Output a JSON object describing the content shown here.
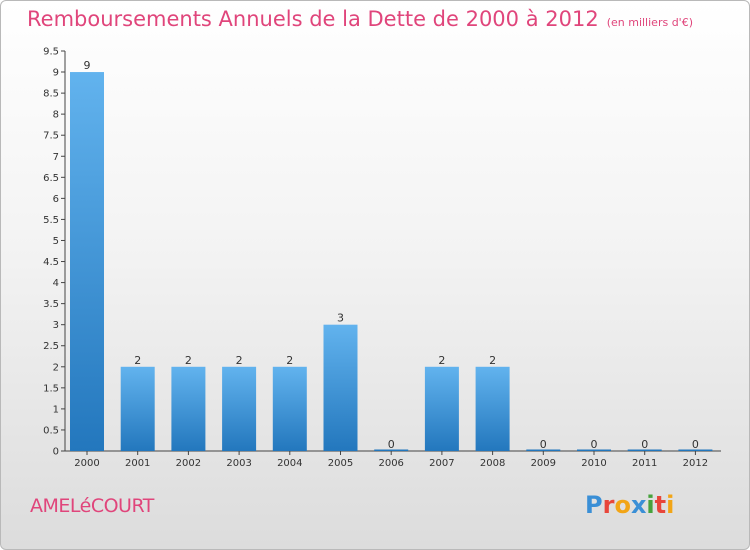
{
  "header": {
    "title": "Remboursements Annuels de la Dette de 2000 à 2012",
    "unit": "(en milliers d'€)"
  },
  "footer": {
    "commune": "AMELéCOURT",
    "brand_letters": [
      {
        "char": "P",
        "color": "#3a8fd6"
      },
      {
        "char": "r",
        "color": "#e8463b"
      },
      {
        "char": "o",
        "color": "#f2a516"
      },
      {
        "char": "x",
        "color": "#3a8fd6"
      },
      {
        "char": "i",
        "color": "#47a23c"
      },
      {
        "char": "t",
        "color": "#e8463b"
      },
      {
        "char": "i",
        "color": "#f2a516"
      }
    ]
  },
  "colors": {
    "bar_top": "#62b3ee",
    "bar_bottom": "#2377bd",
    "title": "#e0457b"
  },
  "chart_data": {
    "type": "bar",
    "categories": [
      "2000",
      "2001",
      "2002",
      "2003",
      "2004",
      "2005",
      "2006",
      "2007",
      "2008",
      "2009",
      "2010",
      "2011",
      "2012"
    ],
    "values": [
      9,
      2,
      2,
      2,
      2,
      3,
      0,
      2,
      2,
      0,
      0,
      0,
      0
    ],
    "value_labels": [
      "9",
      "2",
      "2",
      "2",
      "2",
      "3",
      "0",
      "2",
      "2",
      "0",
      "0",
      "0",
      "0"
    ],
    "title": "Remboursements Annuels de la Dette de 2000 à 2012",
    "xlabel": "",
    "ylabel": "",
    "ylim": [
      0,
      9.5
    ],
    "yticks": [
      "0",
      "0.5",
      "1",
      "1.5",
      "2",
      "2.5",
      "3",
      "3.5",
      "4",
      "4.5",
      "5",
      "5.5",
      "6",
      "6.5",
      "7",
      "7.5",
      "8",
      "8.5",
      "9",
      "9.5"
    ],
    "grid": false,
    "legend": "none"
  }
}
